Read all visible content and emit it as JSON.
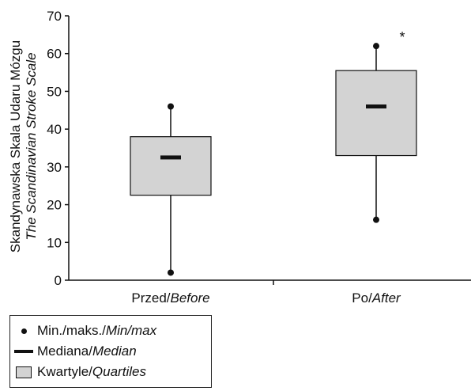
{
  "chart_data": {
    "type": "box",
    "ylabel_line1": "Skandynawska Skala Udaru Mózgu",
    "ylabel_line2": "The Scandinavian Stroke Scale",
    "ylim": [
      0,
      70
    ],
    "yticks": [
      0,
      10,
      20,
      30,
      40,
      50,
      60,
      70
    ],
    "categories": [
      {
        "pl": "Przed/",
        "en": "Before"
      },
      {
        "pl": "Po/",
        "en": "After"
      }
    ],
    "boxes": [
      {
        "min": 2,
        "q1": 22.5,
        "median": 32.5,
        "q3": 38,
        "max": 46
      },
      {
        "min": 16,
        "q1": 33,
        "median": 46,
        "q3": 55.5,
        "max": 62
      }
    ],
    "significance_marker": "*",
    "grid": false
  },
  "legend": {
    "items": [
      {
        "symbol": "dot",
        "pl": "Min./maks./",
        "en": "Min/max"
      },
      {
        "symbol": "bar",
        "pl": "Mediana/",
        "en": "Median"
      },
      {
        "symbol": "box",
        "pl": "Kwartyle/",
        "en": "Quartiles"
      }
    ]
  },
  "colors": {
    "box_fill": "#d3d3d3",
    "stroke": "#111111"
  }
}
